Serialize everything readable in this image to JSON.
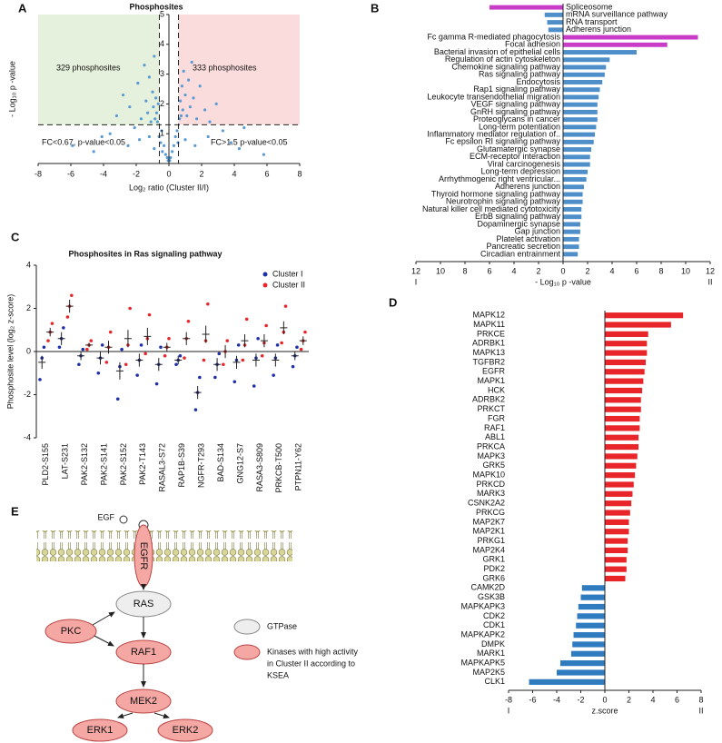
{
  "chart_data": [
    {
      "type": "scatter",
      "panel": "A",
      "title": "Phosphosites",
      "x_label": "Log₂ ratio (Cluster II/I)",
      "y_label": "- Log₁₀ p -value",
      "x": [
        -5.9,
        -4.6,
        -4.1,
        -3.2,
        -2.8,
        -2.4,
        -2.1,
        -1.9,
        -1.7,
        -1.5,
        -1.4,
        -1.3,
        -1.2,
        -1.1,
        -1.0,
        -0.95,
        -0.9,
        -0.85,
        -0.8,
        -0.75,
        -0.7,
        -0.65,
        -3.6,
        -2.5,
        -1.8,
        -1.2,
        -0.9,
        -0.6,
        -0.5,
        -0.45,
        -0.4,
        -0.3,
        -0.2,
        -0.1,
        -0.05,
        0.05,
        0.1,
        0.2,
        0.3,
        0.4,
        0.5,
        0.55,
        0.65,
        0.7,
        0.75,
        0.8,
        0.85,
        0.9,
        1.0,
        1.1,
        1.2,
        1.3,
        1.4,
        1.5,
        1.7,
        1.9,
        2.2,
        2.5,
        2.9,
        3.3,
        3.8,
        4.3,
        4.6,
        5.8,
        1.0,
        1.6,
        2.4
      ],
      "y": [
        0.6,
        0.4,
        0.9,
        1.6,
        2.3,
        1.9,
        1.2,
        2.7,
        1.5,
        3.3,
        2.1,
        1.7,
        2.9,
        1.4,
        2.4,
        1.9,
        3.6,
        1.5,
        2.2,
        1.7,
        1.4,
        2.0,
        1.0,
        0.6,
        0.8,
        0.9,
        0.5,
        0.9,
        0.7,
        1.1,
        0.4,
        0.6,
        0.3,
        0.2,
        0.1,
        0.1,
        0.2,
        0.4,
        0.6,
        0.9,
        1.1,
        0.7,
        1.5,
        2.1,
        1.6,
        2.6,
        1.8,
        3.1,
        2.3,
        1.6,
        2.8,
        1.9,
        3.4,
        2.2,
        1.5,
        2.6,
        1.8,
        1.4,
        2.0,
        1.1,
        0.7,
        0.5,
        1.2,
        0.3,
        0.8,
        0.6,
        0.9
      ],
      "color": "#5b9bd5",
      "region_colors": [
        "#e5f1dc",
        "#fbdcdc"
      ],
      "vlines": [
        -0.585,
        0.585
      ],
      "hline": 1.301,
      "annotations": [
        "329 phosphosites",
        "333 phosphosites",
        "FC<0.67, p-value<0.05",
        "FC>1.5 p-value<0.05"
      ],
      "xlim": [
        -8,
        8
      ],
      "xticks": [
        -8,
        -6,
        -4,
        -2,
        0,
        2,
        4,
        6,
        8
      ],
      "ylim": [
        0,
        5
      ],
      "yticks": [
        1,
        2,
        3,
        4,
        5
      ]
    },
    {
      "type": "bar",
      "orientation": "horizontal",
      "panel": "B",
      "x_label": "-  Log₁₀ p -value",
      "end_labels": [
        "I",
        "II"
      ],
      "categories": [
        "Spliceosome",
        "mRNA surveillance pathway",
        "RNA transport",
        "Adherens junction",
        "Fc gamma R-mediated phagocytosis",
        "Focal adhesion",
        "Bacterial invasion of epithelial cells",
        "Regulation of actin cytoskeleton",
        "Chemokine signaling pathway",
        "Ras signaling pathway",
        "Endocytosis",
        "Rap1 signaling pathway",
        "Leukocyte transendothelial migration",
        "VEGF signaling pathway",
        "GnRH signaling pathway",
        "Proteoglycans in cancer",
        "Long-term potentiation",
        "Inflammatory mediator regulation of..",
        "Fc epsilon RI signaling pathway",
        "Glutamatergic synapse",
        "ECM-receptor interaction",
        "Viral carcinogenesis",
        "Long-term depression",
        "Arrhythmogenic right ventricular...",
        "Adherens junction",
        "Thyroid hormone signaling pathway",
        "Neurotrophin signaling pathway",
        "Natural killer cell mediated cytotoxicity",
        "ErbB signaling pathway",
        "Dopaminergic synapse",
        "Gap junction",
        "Platelet activation",
        "Pancreatic secretion",
        "Circadian entrainment"
      ],
      "values": [
        -6.0,
        -1.5,
        -1.3,
        -1.2,
        11,
        8.5,
        6,
        3.8,
        3.5,
        3.4,
        3.2,
        3.0,
        2.9,
        2.8,
        2.8,
        2.8,
        2.7,
        2.6,
        2.5,
        2.3,
        2.2,
        2.2,
        2.0,
        1.9,
        1.7,
        1.6,
        1.6,
        1.5,
        1.5,
        1.4,
        1.4,
        1.3,
        1.3,
        1.2
      ],
      "colors": [
        "#c83cc8",
        "#4f8fc9",
        "#4f8fc9",
        "#4f8fc9",
        "#c83cc8",
        "#c83cc8",
        "#4f8fc9",
        "#4f8fc9",
        "#4f8fc9",
        "#4f8fc9",
        "#4f8fc9",
        "#4f8fc9",
        "#4f8fc9",
        "#4f8fc9",
        "#4f8fc9",
        "#4f8fc9",
        "#4f8fc9",
        "#4f8fc9",
        "#4f8fc9",
        "#4f8fc9",
        "#4f8fc9",
        "#4f8fc9",
        "#4f8fc9",
        "#4f8fc9",
        "#4f8fc9",
        "#4f8fc9",
        "#4f8fc9",
        "#4f8fc9",
        "#4f8fc9",
        "#4f8fc9",
        "#4f8fc9",
        "#4f8fc9",
        "#4f8fc9",
        "#4f8fc9"
      ],
      "xlim": [
        -12,
        12
      ],
      "xticks": [
        {
          "value": -12,
          "label": "12"
        },
        {
          "value": -10,
          "label": "10"
        },
        {
          "value": -8,
          "label": "8"
        },
        {
          "value": -6,
          "label": "6"
        },
        {
          "value": -4,
          "label": "4"
        },
        {
          "value": -2,
          "label": "2"
        },
        0,
        2,
        4,
        6,
        8,
        10,
        12
      ]
    },
    {
      "type": "dot",
      "panel": "C",
      "title": "Phosphosites in Ras signaling pathway",
      "y_label": "Phosphosite level (log₂ z-score)",
      "categories": [
        "PLD2-S155",
        "LAT-S231",
        "PAK2-S132",
        "PAK2-S141",
        "PAK2-S152",
        "PAK2-T143",
        "RASAL3-S72",
        "RAP1B-S39",
        "NGFR-T293",
        "BAD-S134",
        "GNG12-S7",
        "RASA3-S809",
        "PRKCB-T500",
        "PTPN11-Y62"
      ],
      "series": [
        {
          "name": "Cluster I",
          "color": "#1f2fa8",
          "values": [
            -0.5,
            0.6,
            -0.2,
            -0.3,
            -0.9,
            -0.4,
            -0.6,
            -0.4,
            -1.9,
            -0.6,
            -0.5,
            -0.4,
            -0.4,
            -0.2
          ],
          "errors": [
            0.3,
            0.3,
            0.2,
            0.3,
            0.4,
            0.3,
            0.3,
            0.2,
            0.3,
            0.3,
            0.3,
            0.3,
            0.3,
            0.2
          ],
          "points": [
            [
              -1.3,
              -0.3,
              0.2
            ],
            [
              0.2,
              0.6,
              1.1
            ],
            [
              -0.6,
              -0.2,
              0.1
            ],
            [
              -1.0,
              -0.3,
              0.3
            ],
            [
              -2.2,
              -0.7,
              0.1
            ],
            [
              -1.1,
              -0.4,
              0.3
            ],
            [
              -1.5,
              -0.6,
              0.2
            ],
            [
              -0.6,
              -0.4,
              -0.2
            ],
            [
              -2.7,
              -1.9,
              -1.2
            ],
            [
              -1.2,
              -0.6,
              -0.1
            ],
            [
              -1.4,
              -0.4,
              0.3
            ],
            [
              -1.6,
              -0.3,
              0.6
            ],
            [
              -1.1,
              -0.3,
              0.3
            ],
            [
              -0.7,
              -0.2,
              0.2
            ]
          ]
        },
        {
          "name": "Cluster II",
          "color": "#e8262a",
          "values": [
            0.9,
            2.1,
            0.3,
            0.2,
            0.6,
            0.7,
            0.2,
            0.6,
            0.8,
            0.0,
            0.5,
            0.5,
            1.1,
            0.5
          ],
          "errors": [
            0.2,
            0.3,
            0.1,
            0.3,
            0.4,
            0.4,
            0.2,
            0.3,
            0.4,
            0.3,
            0.3,
            0.3,
            0.3,
            0.2
          ],
          "points": [
            [
              0.5,
              0.9,
              1.3
            ],
            [
              1.6,
              2.1,
              2.6
            ],
            [
              0.1,
              0.3,
              0.5
            ],
            [
              -0.5,
              0.2,
              0.9
            ],
            [
              -0.6,
              0.3,
              2.0
            ],
            [
              -0.1,
              0.6,
              1.7
            ],
            [
              -0.2,
              0.2,
              0.6
            ],
            [
              -0.3,
              0.6,
              1.4
            ],
            [
              -0.4,
              0.5,
              2.2
            ],
            [
              -0.6,
              0.0,
              0.5
            ],
            [
              -0.4,
              0.3,
              1.5
            ],
            [
              -0.2,
              0.4,
              1.2
            ],
            [
              0.4,
              0.9,
              2.1
            ],
            [
              0.1,
              0.5,
              0.9
            ]
          ]
        }
      ],
      "ylim": [
        -4,
        4
      ],
      "yticks": [
        -4,
        -2,
        0,
        2,
        4
      ]
    },
    {
      "type": "bar",
      "orientation": "horizontal",
      "panel": "D",
      "x_label": "z.score",
      "end_labels": [
        "I",
        "II"
      ],
      "categories": [
        "MAPK12",
        "MAPK11",
        "PRKCE",
        "ADRBK1",
        "MAPK13",
        "TGFBR2",
        "EGFR",
        "MAPK1",
        "HCK",
        "ADRBK2",
        "PRKCT",
        "FGR",
        "RAF1",
        "ABL1",
        "PRKCA",
        "MAPK3",
        "GRK5",
        "MAPK10",
        "PRKCD",
        "MARK3",
        "CSNK2A2",
        "PRKCG",
        "MAP2K7",
        "MAP2K1",
        "PRKG1",
        "MAP2K4",
        "GRK1",
        "PDK2",
        "GRK6",
        "CAMK2D",
        "GSK3B",
        "MAPKAPK3",
        "CDK2",
        "CDK1",
        "MAPKAPK2",
        "DMPK",
        "MARK1",
        "MAPKAPK5",
        "MAP2K5",
        "CLK1"
      ],
      "values": [
        6.5,
        5.5,
        3.6,
        3.5,
        3.5,
        3.4,
        3.3,
        3.2,
        3.1,
        3.0,
        3.0,
        2.9,
        2.9,
        2.8,
        2.8,
        2.7,
        2.6,
        2.5,
        2.4,
        2.3,
        2.2,
        2.1,
        2.0,
        2.0,
        1.9,
        1.9,
        1.8,
        1.8,
        1.7,
        -1.9,
        -2.0,
        -2.2,
        -2.3,
        -2.4,
        -2.6,
        -2.7,
        -2.8,
        -3.7,
        -4.0,
        -6.3
      ],
      "positive_color": "#e8262a",
      "negative_color": "#2f7bbf",
      "xlim": [
        -8,
        8
      ],
      "xticks": [
        -8,
        -6,
        -4,
        -2,
        0,
        2,
        4,
        6,
        8
      ]
    }
  ],
  "diagram": {
    "panel": "E",
    "nodes": {
      "egf": "EGF",
      "egfr": "EGFR",
      "ras": "RAS",
      "pkc": "PKC",
      "raf1": "RAF1",
      "mek2": "MEK2",
      "erk1": "ERK1",
      "erk2": "ERK2"
    },
    "legend": {
      "gtpase": "GTPase",
      "kinase": [
        "Kinases with high activity",
        "in Cluster II according to",
        "KSEA"
      ]
    }
  }
}
